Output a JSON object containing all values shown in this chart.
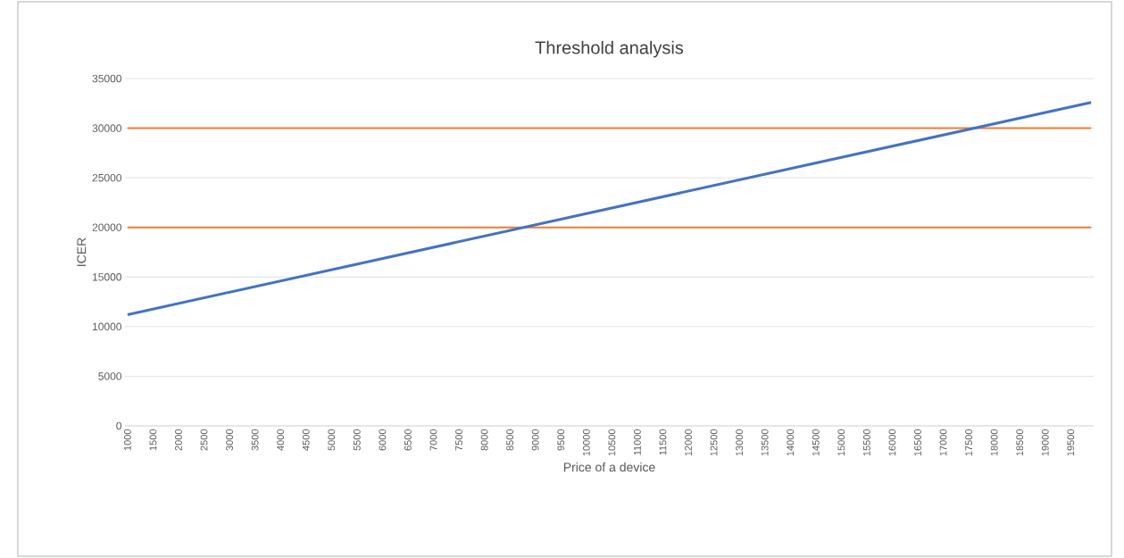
{
  "chart_data": {
    "type": "line",
    "title": "Threshold analysis",
    "xlabel": "Price of a device",
    "ylabel": "ICER",
    "x": [
      1000,
      19900
    ],
    "series": [
      {
        "color": "#ed7d31",
        "values": [
          20000,
          20000
        ]
      },
      {
        "color": "#ed7d31",
        "values": [
          30000,
          30000
        ]
      },
      {
        "color": "#4472c4",
        "values": [
          11200,
          32600
        ]
      }
    ],
    "xlim": [
      950,
      19950
    ],
    "ylim": [
      0,
      35000
    ],
    "xticks": [
      1000,
      1500,
      2000,
      2500,
      3000,
      3500,
      4000,
      4500,
      5000,
      5500,
      6000,
      6500,
      7000,
      7500,
      8000,
      8500,
      9000,
      9500,
      10000,
      10500,
      11000,
      11500,
      12000,
      12500,
      13000,
      13500,
      14000,
      14500,
      15000,
      15500,
      16000,
      16500,
      17000,
      17500,
      18000,
      18500,
      19000,
      19500
    ],
    "yticks": [
      0,
      5000,
      10000,
      15000,
      20000,
      25000,
      30000,
      35000
    ],
    "grid": "y"
  }
}
